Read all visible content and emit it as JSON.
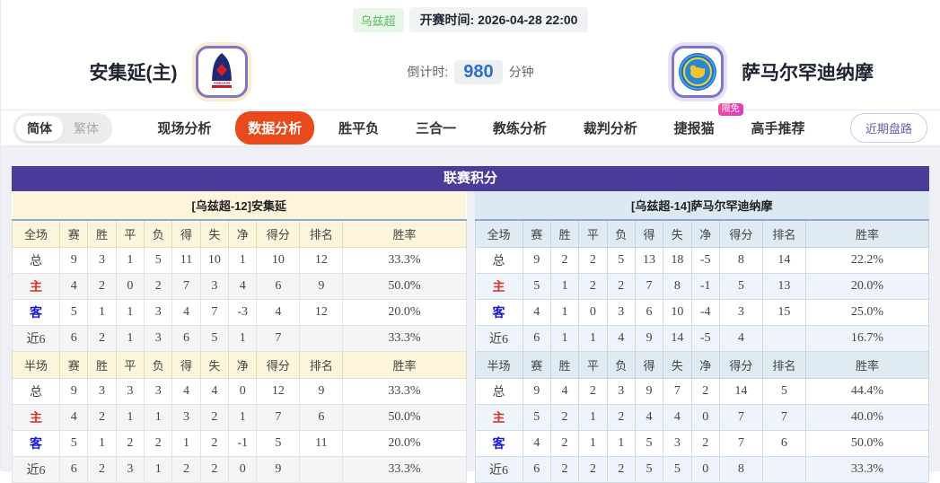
{
  "header": {
    "league": "乌兹超",
    "kickoff_label": "开赛时间:",
    "kickoff_time": "2026-04-28 22:00",
    "home_team": "安集延(主)",
    "away_team": "萨马尔罕迪纳摩",
    "home_logo_text": "ANDIJON",
    "countdown_label": "倒计时:",
    "countdown_value": "980",
    "countdown_unit": "分钟"
  },
  "nav": {
    "lang": [
      {
        "label": "简体",
        "active": true
      },
      {
        "label": "繁体",
        "active": false
      }
    ],
    "tabs": [
      {
        "label": "现场分析",
        "active": false
      },
      {
        "label": "数据分析",
        "active": true
      },
      {
        "label": "胜平负",
        "active": false
      },
      {
        "label": "三合一",
        "active": false
      },
      {
        "label": "教练分析",
        "active": false
      },
      {
        "label": "裁判分析",
        "active": false
      },
      {
        "label": "捷报猫",
        "active": false,
        "badge": "限免"
      },
      {
        "label": "高手推荐",
        "active": false
      }
    ],
    "right_button": "近期盘路"
  },
  "colors": {
    "accent_orange": "#e84a1b",
    "header_purple": "#4c3c9a",
    "badge_pink": "#e845ab",
    "league_green": "#5cb85c",
    "countdown_blue": "#2a6fd0",
    "home_panel_cream": "#fdf4dc",
    "away_panel_blue": "#dce9f3",
    "home_row_red": "#d93025",
    "away_row_blue": "#1a1acc"
  },
  "league_table": {
    "title": "联赛积分",
    "full_label": "全场",
    "half_label": "半场",
    "columns": [
      "赛",
      "胜",
      "平",
      "负",
      "得",
      "失",
      "净",
      "得分",
      "排名",
      "胜率"
    ],
    "left": {
      "team_header": "[乌兹超-12]安集延",
      "full_rows": [
        {
          "label": "总",
          "type": "total",
          "cells": [
            "9",
            "3",
            "1",
            "5",
            "11",
            "10",
            "1",
            "10",
            "12",
            "33.3%"
          ]
        },
        {
          "label": "主",
          "type": "home",
          "cells": [
            "4",
            "2",
            "0",
            "2",
            "7",
            "3",
            "4",
            "6",
            "9",
            "50.0%"
          ]
        },
        {
          "label": "客",
          "type": "away",
          "cells": [
            "5",
            "1",
            "1",
            "3",
            "4",
            "7",
            "-3",
            "4",
            "12",
            "20.0%"
          ]
        },
        {
          "label": "近6",
          "type": "recent",
          "cells": [
            "6",
            "2",
            "1",
            "3",
            "6",
            "5",
            "1",
            "7",
            "",
            "33.3%"
          ]
        }
      ],
      "half_rows": [
        {
          "label": "总",
          "type": "total",
          "cells": [
            "9",
            "3",
            "3",
            "3",
            "4",
            "4",
            "0",
            "12",
            "9",
            "33.3%"
          ]
        },
        {
          "label": "主",
          "type": "home",
          "cells": [
            "4",
            "2",
            "1",
            "1",
            "3",
            "2",
            "1",
            "7",
            "6",
            "50.0%"
          ]
        },
        {
          "label": "客",
          "type": "away",
          "cells": [
            "5",
            "1",
            "2",
            "2",
            "1",
            "2",
            "-1",
            "5",
            "11",
            "20.0%"
          ]
        },
        {
          "label": "近6",
          "type": "recent",
          "cells": [
            "6",
            "2",
            "3",
            "1",
            "2",
            "2",
            "0",
            "9",
            "",
            "33.3%"
          ]
        }
      ]
    },
    "right": {
      "team_header": "[乌兹超-14]萨马尔罕迪纳摩",
      "full_rows": [
        {
          "label": "总",
          "type": "total",
          "cells": [
            "9",
            "2",
            "2",
            "5",
            "13",
            "18",
            "-5",
            "8",
            "14",
            "22.2%"
          ]
        },
        {
          "label": "主",
          "type": "home",
          "cells": [
            "5",
            "1",
            "2",
            "2",
            "7",
            "8",
            "-1",
            "5",
            "13",
            "20.0%"
          ]
        },
        {
          "label": "客",
          "type": "away",
          "cells": [
            "4",
            "1",
            "0",
            "3",
            "6",
            "10",
            "-4",
            "3",
            "15",
            "25.0%"
          ]
        },
        {
          "label": "近6",
          "type": "recent",
          "cells": [
            "6",
            "1",
            "1",
            "4",
            "9",
            "14",
            "-5",
            "4",
            "",
            "16.7%"
          ]
        }
      ],
      "half_rows": [
        {
          "label": "总",
          "type": "total",
          "cells": [
            "9",
            "4",
            "2",
            "3",
            "9",
            "7",
            "2",
            "14",
            "5",
            "44.4%"
          ]
        },
        {
          "label": "主",
          "type": "home",
          "cells": [
            "5",
            "2",
            "1",
            "2",
            "4",
            "4",
            "0",
            "7",
            "7",
            "40.0%"
          ]
        },
        {
          "label": "客",
          "type": "away",
          "cells": [
            "4",
            "2",
            "1",
            "1",
            "5",
            "3",
            "2",
            "7",
            "6",
            "50.0%"
          ]
        },
        {
          "label": "近6",
          "type": "recent",
          "cells": [
            "6",
            "2",
            "2",
            "2",
            "5",
            "5",
            "0",
            "8",
            "",
            "33.3%"
          ]
        }
      ]
    }
  }
}
